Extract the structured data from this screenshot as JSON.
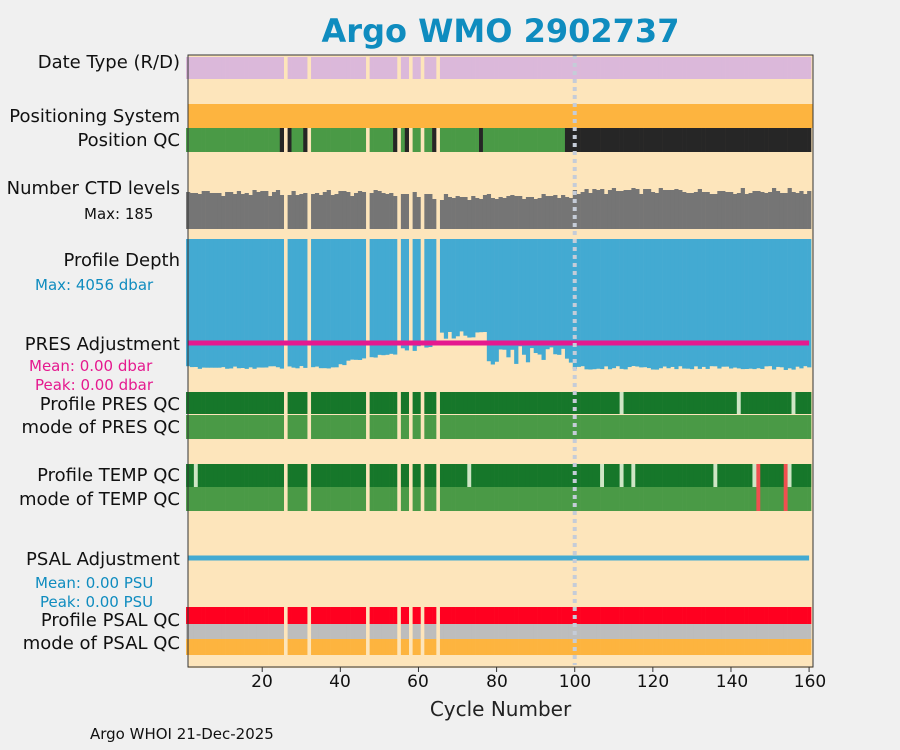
{
  "title": "Argo WMO 2902737",
  "footer": "Argo WHOI 21-Dec-2025",
  "colors": {
    "title": "#0f8cbf",
    "background": "#fde5bb",
    "date_type": "#dbb8da",
    "positioning": "#fdb43f",
    "qc_good_light": "#4a9a46",
    "qc_good_dark": "#16772a",
    "qc_black": "#262626",
    "ctd": "#757575",
    "depth": "#43aad2",
    "pres_adj": "#e5198f",
    "psal_adj": "#43aad2",
    "qc_red": "#ff0020",
    "qc_gray": "#bdbdbd",
    "missing_tick": "#cfe6c6",
    "temp_red": "#f05050",
    "ref_line": "#c5ccd8"
  },
  "labels": {
    "date_type": "Date Type (R/D)",
    "positioning_system": "Positioning System",
    "position_qc": "Position QC",
    "number_ctd_levels": "Number CTD levels",
    "ctd_max": "Max: 185",
    "profile_depth": "Profile Depth",
    "depth_max": "Max: 4056 dbar",
    "pres_adjustment": "PRES Adjustment",
    "pres_mean": "Mean: 0.00 dbar",
    "pres_peak": "Peak: 0.00 dbar",
    "profile_pres_qc": "Profile PRES QC",
    "mode_pres_qc": "mode of PRES QC",
    "profile_temp_qc": "Profile TEMP QC",
    "mode_temp_qc": "mode of TEMP QC",
    "psal_adjustment": "PSAL Adjustment",
    "psal_mean": "Mean: 0.00 PSU",
    "psal_peak": "Peak: 0.00 PSU",
    "profile_psal_qc": "Profile PSAL QC",
    "mode_psal_qc": "mode of PSAL QC"
  },
  "chart_data": {
    "type": "bar",
    "title": "Argo WMO 2902737",
    "xlabel": "Cycle Number",
    "xlim": [
      1,
      161
    ],
    "xticks": [
      20,
      40,
      60,
      80,
      100,
      120,
      140,
      160
    ],
    "reference_cycle": 100,
    "missing_cycles": [
      26,
      32,
      47,
      55,
      58,
      61,
      65
    ],
    "position_qc_bad_cycles": [
      25,
      27,
      31,
      54,
      57,
      64,
      76
    ],
    "position_qc_black_from": 98,
    "pres_qc_alt_cycles": [
      112,
      142,
      156
    ],
    "temp_qc_alt_cycles": [
      3,
      73,
      107,
      112,
      115,
      136,
      146,
      155
    ],
    "temp_qc_red_cycles": [
      147,
      154
    ],
    "series": [
      {
        "name": "Number CTD levels",
        "max": 185,
        "cycles_1_to_160": "mostly 150-185"
      },
      {
        "name": "Profile Depth (dbar)",
        "max": 4056
      },
      {
        "name": "PRES Adjustment (dbar)",
        "mean": 0.0,
        "peak": 0.0
      },
      {
        "name": "PSAL Adjustment (PSU)",
        "mean": 0.0,
        "peak": 0.0
      }
    ]
  }
}
